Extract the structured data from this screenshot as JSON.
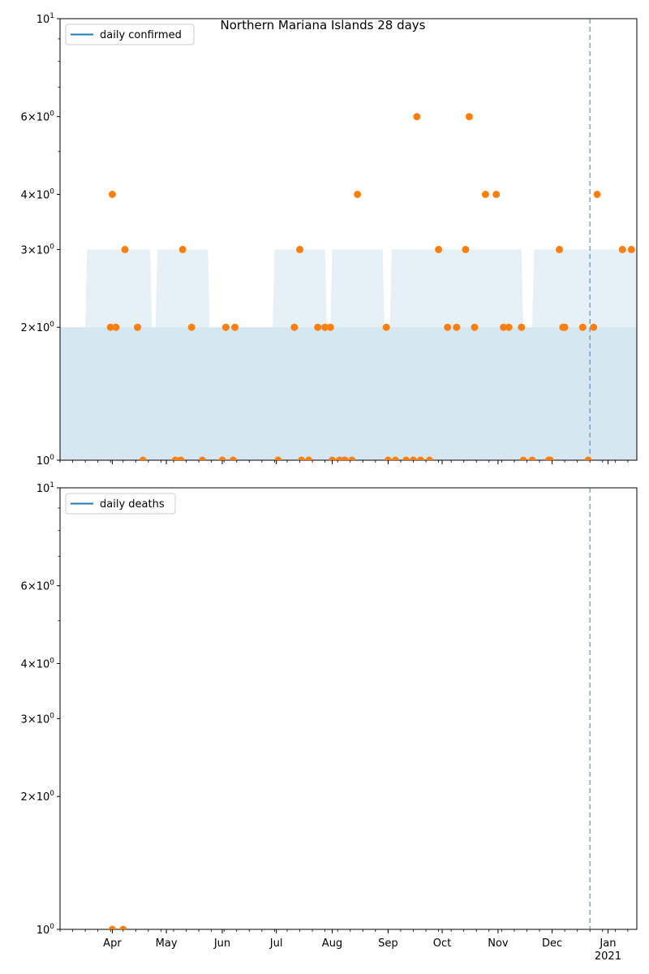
{
  "title": "Northern Mariana Islands 28 days",
  "colors": {
    "line": "#1f77b4",
    "points": "#ff7f0e",
    "band": "#1f77b4",
    "vline": "#1f77b4"
  },
  "chart_data": [
    {
      "type": "scatter",
      "legend": "daily confirmed",
      "legend_position": "top-left",
      "yscale": "log",
      "ylim": [
        1,
        10
      ],
      "y_ticks": [
        {
          "value": 1,
          "label": "10^0"
        },
        {
          "value": 2,
          "label": "2×10^0"
        },
        {
          "value": 3,
          "label": "3×10^0"
        },
        {
          "value": 4,
          "label": "4×10^0"
        },
        {
          "value": 6,
          "label": "6×10^0"
        },
        {
          "value": 10,
          "label": "10^1"
        }
      ],
      "xlim": [
        "2020-03-03",
        "2021-01-17"
      ],
      "vline_date": "2020-12-22",
      "points": [
        [
          "2020-03-31",
          2
        ],
        [
          "2020-04-01",
          4
        ],
        [
          "2020-04-03",
          2
        ],
        [
          "2020-04-08",
          3
        ],
        [
          "2020-04-15",
          2
        ],
        [
          "2020-04-18",
          1
        ],
        [
          "2020-05-06",
          1
        ],
        [
          "2020-05-09",
          1
        ],
        [
          "2020-05-10",
          3
        ],
        [
          "2020-05-15",
          2
        ],
        [
          "2020-05-21",
          1
        ],
        [
          "2020-06-01",
          1
        ],
        [
          "2020-06-03",
          2
        ],
        [
          "2020-06-07",
          1
        ],
        [
          "2020-06-08",
          2
        ],
        [
          "2020-07-02",
          1
        ],
        [
          "2020-07-11",
          2
        ],
        [
          "2020-07-14",
          3
        ],
        [
          "2020-07-15",
          1
        ],
        [
          "2020-07-19",
          1
        ],
        [
          "2020-07-24",
          2
        ],
        [
          "2020-07-28",
          2
        ],
        [
          "2020-07-31",
          2
        ],
        [
          "2020-08-01",
          1
        ],
        [
          "2020-08-05",
          1
        ],
        [
          "2020-08-08",
          1
        ],
        [
          "2020-08-12",
          1
        ],
        [
          "2020-08-15",
          4
        ],
        [
          "2020-08-31",
          2
        ],
        [
          "2020-09-01",
          1
        ],
        [
          "2020-09-05",
          1
        ],
        [
          "2020-09-11",
          1
        ],
        [
          "2020-09-15",
          1
        ],
        [
          "2020-09-17",
          6
        ],
        [
          "2020-09-19",
          1
        ],
        [
          "2020-09-24",
          1
        ],
        [
          "2020-09-29",
          3
        ],
        [
          "2020-10-04",
          2
        ],
        [
          "2020-10-09",
          2
        ],
        [
          "2020-10-14",
          3
        ],
        [
          "2020-10-16",
          6
        ],
        [
          "2020-10-19",
          2
        ],
        [
          "2020-10-25",
          4
        ],
        [
          "2020-10-31",
          4
        ],
        [
          "2020-11-04",
          2
        ],
        [
          "2020-11-07",
          2
        ],
        [
          "2020-11-14",
          2
        ],
        [
          "2020-11-15",
          1
        ],
        [
          "2020-11-20",
          1
        ],
        [
          "2020-11-29",
          1
        ],
        [
          "2020-11-30",
          1
        ],
        [
          "2020-12-05",
          3
        ],
        [
          "2020-12-07",
          2
        ],
        [
          "2020-12-08",
          2
        ],
        [
          "2020-12-18",
          2
        ],
        [
          "2020-12-21",
          1
        ],
        [
          "2020-12-24",
          2
        ],
        [
          "2020-12-26",
          4
        ],
        [
          "2021-01-09",
          3
        ],
        [
          "2021-01-14",
          3
        ]
      ]
    },
    {
      "type": "scatter",
      "legend": "daily deaths",
      "legend_position": "top-left",
      "yscale": "log",
      "ylim": [
        1,
        10
      ],
      "y_ticks": [
        {
          "value": 1,
          "label": "10^0"
        },
        {
          "value": 2,
          "label": "2×10^0"
        },
        {
          "value": 3,
          "label": "3×10^0"
        },
        {
          "value": 4,
          "label": "4×10^0"
        },
        {
          "value": 6,
          "label": "6×10^0"
        },
        {
          "value": 10,
          "label": "10^1"
        }
      ],
      "xlim": [
        "2020-03-03",
        "2021-01-17"
      ],
      "x_ticks": [
        {
          "date": "2020-04-01",
          "label": "Apr"
        },
        {
          "date": "2020-05-01",
          "label": "May"
        },
        {
          "date": "2020-06-01",
          "label": "Jun"
        },
        {
          "date": "2020-07-01",
          "label": "Jul"
        },
        {
          "date": "2020-08-01",
          "label": "Aug"
        },
        {
          "date": "2020-09-01",
          "label": "Sep"
        },
        {
          "date": "2020-10-01",
          "label": "Oct"
        },
        {
          "date": "2020-11-01",
          "label": "Nov"
        },
        {
          "date": "2020-12-01",
          "label": "Dec"
        },
        {
          "date": "2021-01-01",
          "label": "Jan"
        }
      ],
      "x_year_label": "2021",
      "vline_date": "2020-12-22",
      "points": [
        [
          "2020-04-01",
          1
        ],
        [
          "2020-04-07",
          1
        ]
      ]
    }
  ]
}
